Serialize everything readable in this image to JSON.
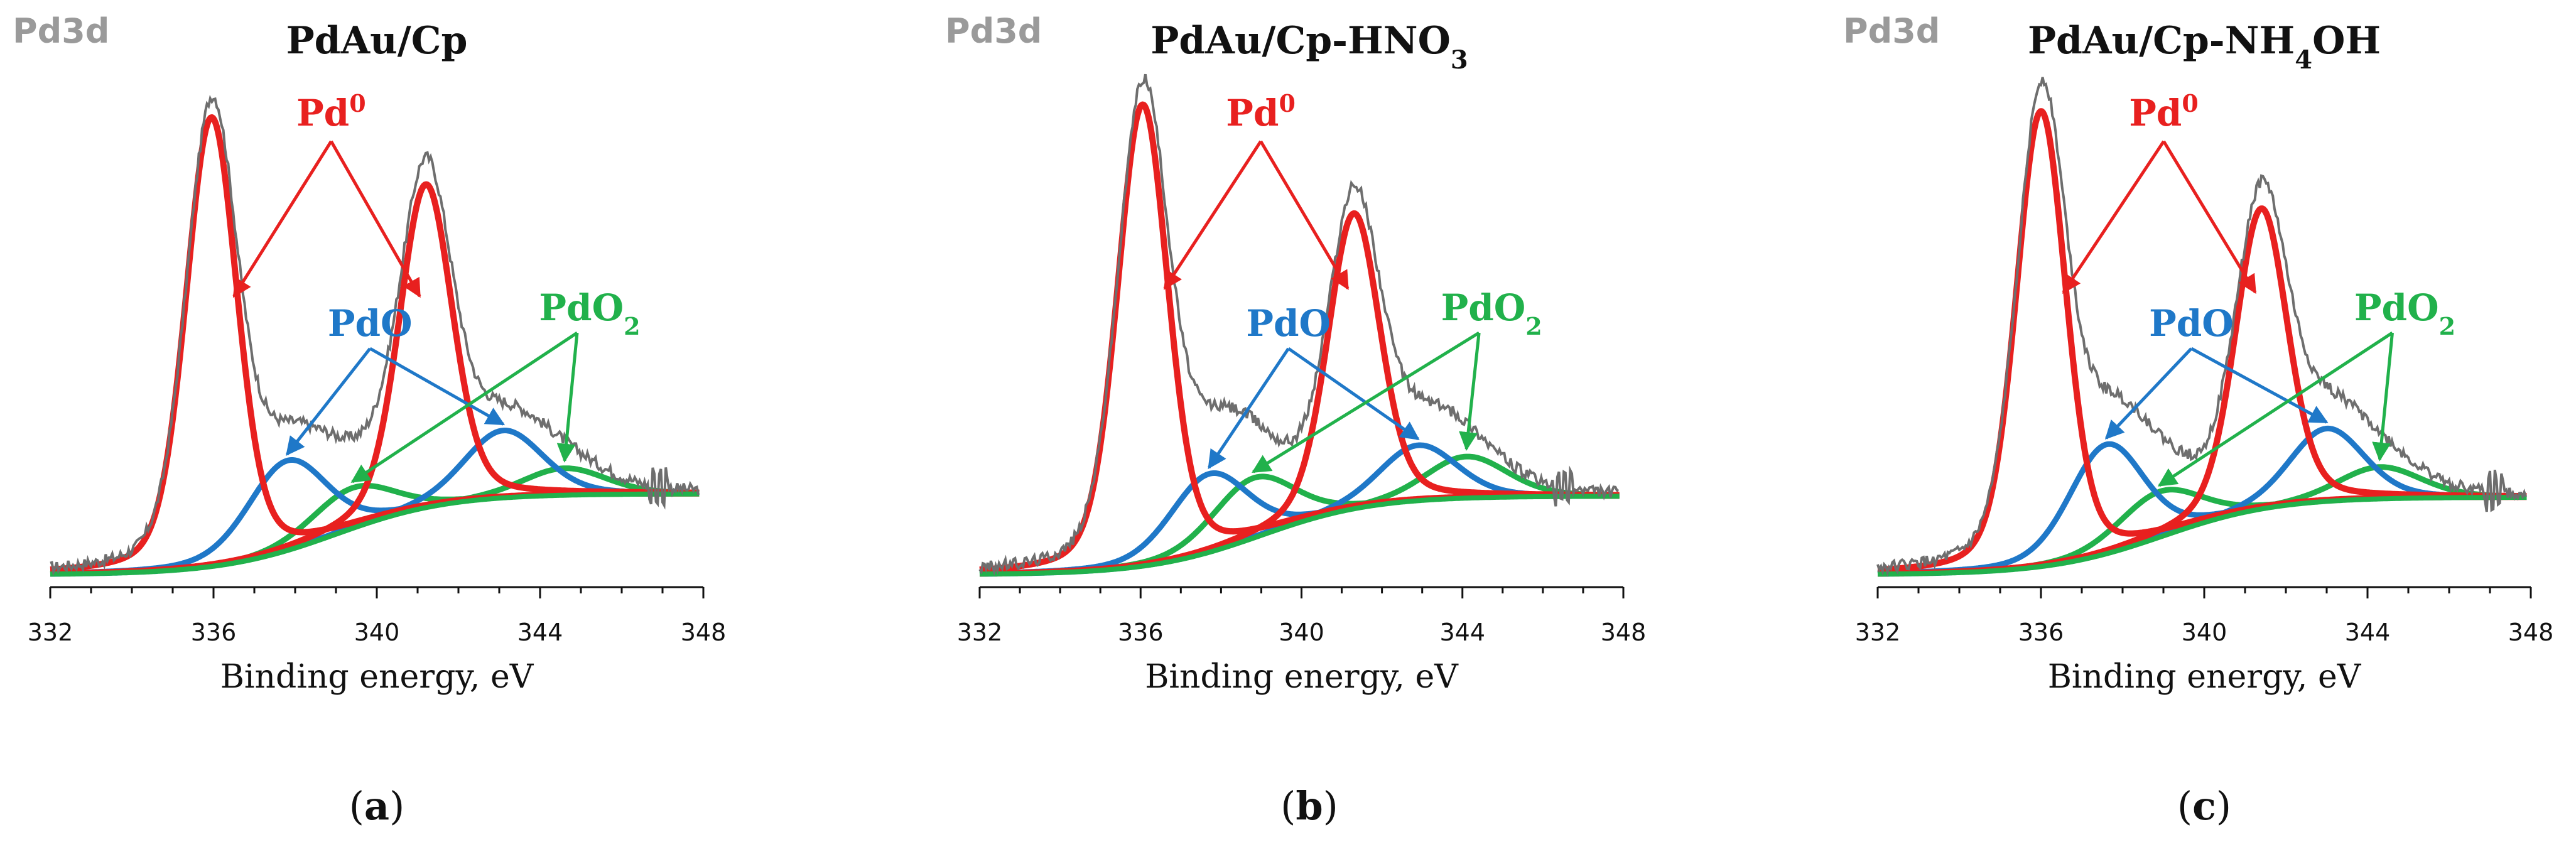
{
  "figure": {
    "element_label": "Pd3d",
    "panels": [
      {
        "label_paren_open": "(",
        "label_letter": "a",
        "label_paren_close": ")",
        "title_main": "PdAu/Cp",
        "title_sub": "",
        "title_end": ""
      },
      {
        "label_paren_open": "(",
        "label_letter": "b",
        "label_paren_close": ")",
        "title_main": "PdAu/Cp-HNO",
        "title_sub": "3",
        "title_end": ""
      },
      {
        "label_paren_open": "(",
        "label_letter": "c",
        "label_paren_close": ")",
        "title_main": "PdAu/Cp-NH",
        "title_sub": "4",
        "title_end": "OH"
      }
    ],
    "annotations": {
      "pd0_main": "Pd",
      "pd0_sup": "0",
      "pdo": "PdO",
      "pdo2_main": "PdO",
      "pdo2_sub": "2"
    },
    "colors": {
      "experimental": "#6e6e6e",
      "envelope": "#555555",
      "pd0": "#e8201f",
      "pdo": "#1f78c8",
      "pdo2": "#21b14b",
      "element_label": "#9a9a9a"
    }
  },
  "chart_data": [
    {
      "type": "line",
      "title": "PdAu/Cp",
      "xlabel": "Binding energy, eV",
      "ylabel": "",
      "xlim": [
        332,
        348
      ],
      "ylim": [
        0,
        1.1
      ],
      "xticks": [
        332,
        336,
        340,
        344,
        348
      ],
      "series": [
        {
          "name": "Pd0",
          "components": [
            {
              "center": 335.95,
              "height": 1.0,
              "width": 0.62
            },
            {
              "center": 341.2,
              "height": 0.72,
              "width": 0.64
            }
          ]
        },
        {
          "name": "PdO",
          "components": [
            {
              "center": 337.8,
              "height": 0.2,
              "width": 0.95
            },
            {
              "center": 343.1,
              "height": 0.15,
              "width": 0.95
            }
          ]
        },
        {
          "name": "PdO2",
          "components": [
            {
              "center": 339.4,
              "height": 0.09,
              "width": 1.0
            },
            {
              "center": 344.6,
              "height": 0.06,
              "width": 1.0
            }
          ]
        }
      ],
      "background": {
        "start": 0.0,
        "end": 0.18,
        "noise_x": 346.9
      }
    },
    {
      "type": "line",
      "title": "PdAu/Cp-HNO3",
      "xlabel": "Binding energy, eV",
      "ylabel": "",
      "xlim": [
        332,
        348
      ],
      "ylim": [
        0,
        1.1
      ],
      "xticks": [
        332,
        336,
        340,
        344,
        348
      ],
      "series": [
        {
          "name": "Pd0",
          "components": [
            {
              "center": 336.05,
              "height": 1.0,
              "width": 0.62
            },
            {
              "center": 341.3,
              "height": 0.64,
              "width": 0.64
            }
          ]
        },
        {
          "name": "PdO",
          "components": [
            {
              "center": 337.7,
              "height": 0.17,
              "width": 0.95
            },
            {
              "center": 342.9,
              "height": 0.12,
              "width": 0.95
            }
          ]
        },
        {
          "name": "PdO2",
          "components": [
            {
              "center": 338.8,
              "height": 0.13,
              "width": 1.0
            },
            {
              "center": 344.1,
              "height": 0.09,
              "width": 1.0
            }
          ]
        }
      ],
      "background": {
        "start": 0.0,
        "end": 0.17,
        "noise_x": 346.5
      }
    },
    {
      "type": "line",
      "title": "PdAu/Cp-NH4OH",
      "xlabel": "Binding energy, eV",
      "ylabel": "",
      "xlim": [
        332,
        348
      ],
      "ylim": [
        0,
        1.1
      ],
      "xticks": [
        332,
        336,
        340,
        344,
        348
      ],
      "series": [
        {
          "name": "Pd0",
          "components": [
            {
              "center": 336.0,
              "height": 1.0,
              "width": 0.6
            },
            {
              "center": 341.4,
              "height": 0.66,
              "width": 0.63
            }
          ]
        },
        {
          "name": "PdO",
          "components": [
            {
              "center": 337.6,
              "height": 0.24,
              "width": 0.9
            },
            {
              "center": 343.0,
              "height": 0.16,
              "width": 0.9
            }
          ]
        },
        {
          "name": "PdO2",
          "components": [
            {
              "center": 338.9,
              "height": 0.1,
              "width": 1.0
            },
            {
              "center": 344.3,
              "height": 0.07,
              "width": 1.0
            }
          ]
        }
      ],
      "background": {
        "start": 0.0,
        "end": 0.17,
        "noise_x": 347.1
      }
    }
  ]
}
